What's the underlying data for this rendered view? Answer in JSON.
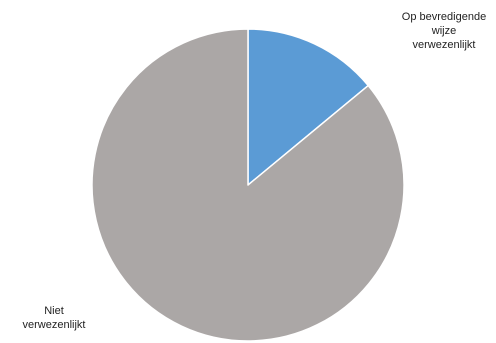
{
  "chart_data": {
    "type": "pie",
    "title": "",
    "slices": [
      {
        "label_lines": [
          "Op bevredigende",
          "wijze",
          "verwezenlijkt"
        ],
        "value": 14,
        "color": "#5b9bd5"
      },
      {
        "label_lines": [
          "Niet",
          "verwezenlijkt"
        ],
        "value": 86,
        "color": "#aba7a6"
      }
    ],
    "start_angle_deg": 0,
    "direction": "clockwise",
    "slice_border_color": "#ffffff",
    "legend": "none"
  }
}
